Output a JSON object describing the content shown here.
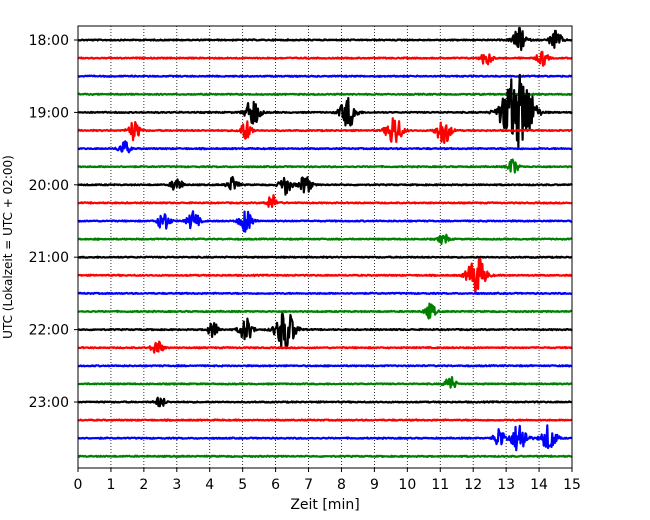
{
  "chart_data": {
    "type": "line",
    "title": "",
    "xlabel": "Zeit  [min]",
    "ylabel": "UTC (Lokalzeit = UTC + 02:00)",
    "xlim": [
      0,
      15
    ],
    "x_ticks": [
      0,
      1,
      2,
      3,
      4,
      5,
      6,
      7,
      8,
      9,
      10,
      11,
      12,
      13,
      14,
      15
    ],
    "y_tick_labels": [
      "18:00",
      "19:00",
      "20:00",
      "21:00",
      "22:00",
      "23:00"
    ],
    "grid": "vertical dotted",
    "trace_colors": [
      "#000000",
      "#ff0000",
      "#0000ff",
      "#008000"
    ],
    "traces": [
      {
        "start": "18:00",
        "events": [
          [
            13.4,
            0.6
          ],
          [
            14.5,
            0.5
          ]
        ]
      },
      {
        "start": "18:15",
        "events": [
          [
            12.4,
            0.4
          ],
          [
            14.1,
            0.4
          ]
        ]
      },
      {
        "start": "18:30",
        "events": []
      },
      {
        "start": "18:45",
        "events": []
      },
      {
        "start": "19:00",
        "events": [
          [
            5.3,
            0.7
          ],
          [
            8.2,
            0.8
          ],
          [
            13.2,
            1.6
          ],
          [
            13.6,
            1.2
          ]
        ]
      },
      {
        "start": "19:15",
        "events": [
          [
            1.7,
            0.5
          ],
          [
            5.1,
            0.5
          ],
          [
            9.6,
            0.8
          ],
          [
            11.1,
            0.7
          ]
        ]
      },
      {
        "start": "19:30",
        "events": [
          [
            1.4,
            0.4
          ]
        ]
      },
      {
        "start": "19:45",
        "events": [
          [
            13.2,
            0.4
          ]
        ]
      },
      {
        "start": "20:00",
        "events": [
          [
            3.0,
            0.4
          ],
          [
            4.7,
            0.4
          ],
          [
            6.3,
            0.5
          ],
          [
            6.9,
            0.5
          ]
        ]
      },
      {
        "start": "20:15",
        "events": [
          [
            5.9,
            0.4
          ]
        ]
      },
      {
        "start": "20:30",
        "events": [
          [
            2.6,
            0.5
          ],
          [
            3.5,
            0.5
          ],
          [
            5.1,
            0.6
          ]
        ]
      },
      {
        "start": "20:45",
        "events": [
          [
            11.1,
            0.3
          ]
        ]
      },
      {
        "start": "21:00",
        "events": []
      },
      {
        "start": "21:15",
        "events": [
          [
            12.1,
            1.0
          ]
        ]
      },
      {
        "start": "21:30",
        "events": []
      },
      {
        "start": "21:45",
        "events": [
          [
            10.7,
            0.4
          ]
        ]
      },
      {
        "start": "22:00",
        "events": [
          [
            4.1,
            0.4
          ],
          [
            5.1,
            0.6
          ],
          [
            6.3,
            1.1
          ]
        ]
      },
      {
        "start": "22:15",
        "events": [
          [
            2.4,
            0.4
          ]
        ]
      },
      {
        "start": "22:30",
        "events": []
      },
      {
        "start": "22:45",
        "events": [
          [
            11.3,
            0.4
          ]
        ]
      },
      {
        "start": "23:00",
        "events": [
          [
            2.5,
            0.3
          ]
        ]
      },
      {
        "start": "23:15",
        "events": []
      },
      {
        "start": "23:30",
        "events": [
          [
            12.8,
            0.5
          ],
          [
            13.4,
            0.8
          ],
          [
            14.3,
            0.7
          ]
        ]
      },
      {
        "start": "23:45",
        "events": []
      }
    ]
  }
}
